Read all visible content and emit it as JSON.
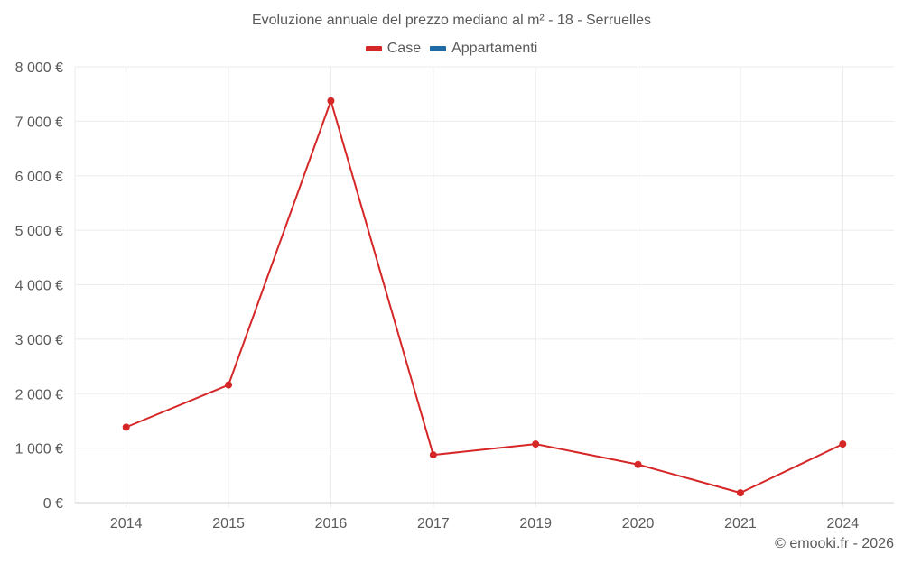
{
  "title": "Evoluzione annuale del prezzo mediano al m² - 18 - Serruelles",
  "legend": [
    {
      "label": "Case",
      "color": "#d62728"
    },
    {
      "label": "Appartamenti",
      "color": "#1f6aa5"
    }
  ],
  "credit": "© emooki.fr - 2026",
  "colors": {
    "grid": "#ebebeb",
    "axis": "#d0d0d0",
    "series_case": "#d62728"
  },
  "chart_data": {
    "type": "line",
    "title": "Evoluzione annuale del prezzo mediano al m² - 18 - Serruelles",
    "xlabel": "",
    "ylabel": "",
    "categories": [
      "2014",
      "2015",
      "2016",
      "2017",
      "2019",
      "2020",
      "2021",
      "2024"
    ],
    "series": [
      {
        "name": "Case",
        "color": "#d62728",
        "values": [
          1385,
          2160,
          7375,
          875,
          1075,
          700,
          180,
          1075
        ]
      },
      {
        "name": "Appartamenti",
        "color": "#1f6aa5",
        "values": []
      }
    ],
    "ylim": [
      0,
      8000
    ],
    "yticks": [
      0,
      1000,
      2000,
      3000,
      4000,
      5000,
      6000,
      7000,
      8000
    ],
    "ytick_labels": [
      "0 €",
      "1 000 €",
      "2 000 €",
      "3 000 €",
      "4 000 €",
      "5 000 €",
      "6 000 €",
      "7 000 €",
      "8 000 €"
    ],
    "grid": true,
    "legend_position": "top"
  }
}
